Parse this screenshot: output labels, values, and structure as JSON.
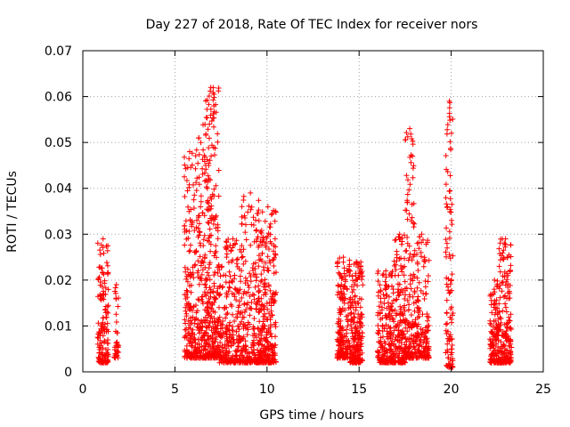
{
  "chart_data": {
    "type": "scatter",
    "title": "Day 227 of 2018, Rate Of TEC Index for receiver nors",
    "xlabel": "GPS time / hours",
    "ylabel": "ROTI / TECUs",
    "xlim": [
      0,
      25
    ],
    "ylim": [
      0,
      0.07
    ],
    "xticks": [
      0,
      5,
      10,
      15,
      20,
      25
    ],
    "xtick_labels": [
      "0",
      "5",
      "10",
      "15",
      "20",
      "25"
    ],
    "yticks": [
      0,
      0.01,
      0.02,
      0.03,
      0.04,
      0.05,
      0.06,
      0.07
    ],
    "ytick_labels": [
      "0",
      "0.01",
      "0.02",
      "0.03",
      "0.04",
      "0.05",
      "0.06",
      "0.07"
    ],
    "grid": true,
    "marker": "+",
    "color": "#ff0000",
    "clusters": [
      {
        "x": [
          0.8,
          1.4
        ],
        "y": [
          0.002,
          0.029
        ],
        "n": 150
      },
      {
        "x": [
          1.7,
          1.95
        ],
        "y": [
          0.003,
          0.019
        ],
        "n": 35
      },
      {
        "x": [
          5.5,
          6.1
        ],
        "y": [
          0.003,
          0.048
        ],
        "n": 160
      },
      {
        "x": [
          6.1,
          6.5
        ],
        "y": [
          0.003,
          0.051
        ],
        "n": 110
      },
      {
        "x": [
          6.5,
          7.4
        ],
        "y": [
          0.003,
          0.062
        ],
        "n": 330
      },
      {
        "x": [
          7.4,
          7.7
        ],
        "y": [
          0.002,
          0.023
        ],
        "n": 50
      },
      {
        "x": [
          7.7,
          8.6
        ],
        "y": [
          0.002,
          0.029
        ],
        "n": 200
      },
      {
        "x": [
          8.6,
          9.6
        ],
        "y": [
          0.002,
          0.039
        ],
        "n": 230
      },
      {
        "x": [
          9.6,
          10.5
        ],
        "y": [
          0.002,
          0.036
        ],
        "n": 260
      },
      {
        "x": [
          13.8,
          14.5
        ],
        "y": [
          0.003,
          0.025
        ],
        "n": 180
      },
      {
        "x": [
          14.5,
          15.2
        ],
        "y": [
          0.002,
          0.024
        ],
        "n": 210
      },
      {
        "x": [
          16.0,
          16.9
        ],
        "y": [
          0.002,
          0.022
        ],
        "n": 200
      },
      {
        "x": [
          16.9,
          17.5
        ],
        "y": [
          0.002,
          0.03
        ],
        "n": 160
      },
      {
        "x": [
          17.5,
          18.0
        ],
        "y": [
          0.003,
          0.053
        ],
        "n": 150
      },
      {
        "x": [
          18.0,
          18.8
        ],
        "y": [
          0.003,
          0.03
        ],
        "n": 160
      },
      {
        "x": [
          19.7,
          20.1
        ],
        "y": [
          0.001,
          0.059
        ],
        "n": 110
      },
      {
        "x": [
          22.1,
          22.6
        ],
        "y": [
          0.002,
          0.02
        ],
        "n": 130
      },
      {
        "x": [
          22.6,
          23.3
        ],
        "y": [
          0.002,
          0.029
        ],
        "n": 180
      }
    ]
  }
}
